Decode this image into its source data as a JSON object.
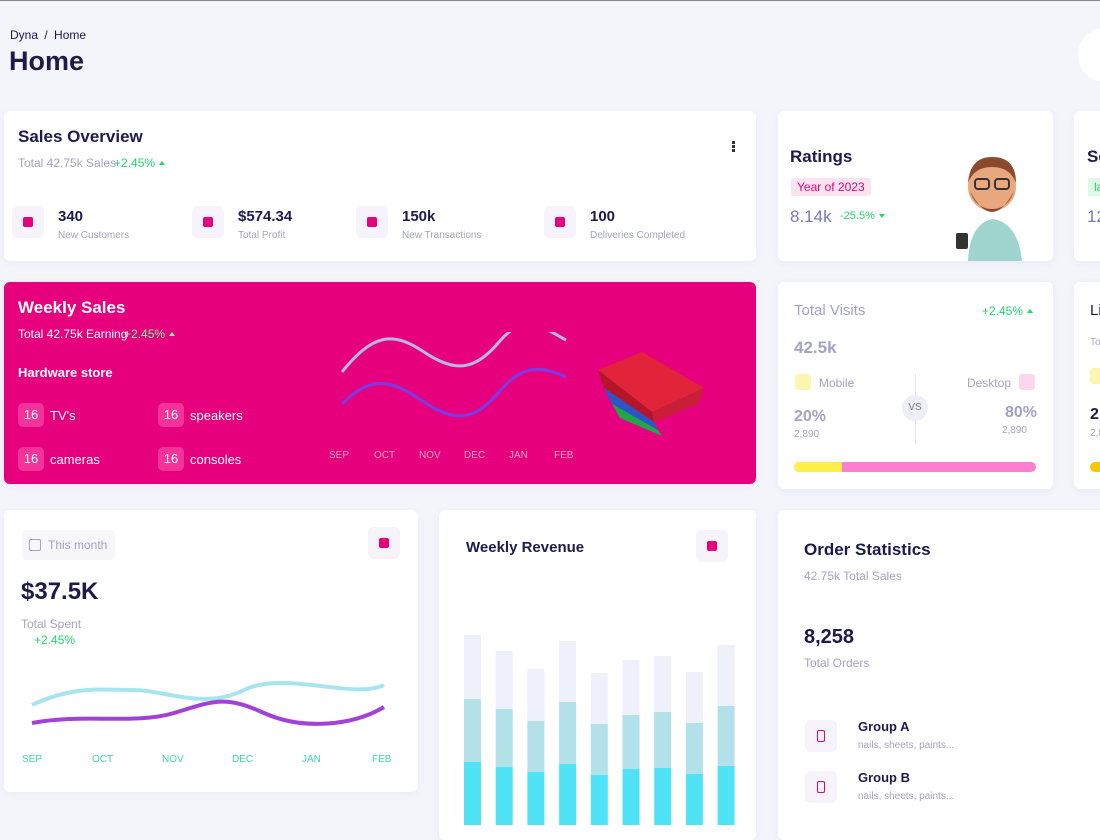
{
  "breadcrumb": {
    "root": "Dyna",
    "separator": "/",
    "current": "Home"
  },
  "page_title": "Home",
  "sales_overview": {
    "title": "Sales Overview",
    "subtitle": "Total 42.75k Sales",
    "change": "+2.45%",
    "stats": [
      {
        "value": "340",
        "label": "New Customers"
      },
      {
        "value": "$574.34",
        "label": "Total Profit"
      },
      {
        "value": "150k",
        "label": "New Transactions"
      },
      {
        "value": "100",
        "label": "Deliveries Completed"
      }
    ]
  },
  "ratings": {
    "title": "Ratings",
    "badge": "Year of 2023",
    "value": "8.14k",
    "change": "-25.5%"
  },
  "cropped_card_1": {
    "title": "Se",
    "badge": "la",
    "value": "12"
  },
  "weekly_sales": {
    "title": "Weekly Sales",
    "subtitle": "Total 42.75k Earning",
    "change": "+2.45%",
    "store": "Hardware store",
    "items": [
      {
        "count": "16",
        "label": "TV's"
      },
      {
        "count": "16",
        "label": "speakers"
      },
      {
        "count": "16",
        "label": "cameras"
      },
      {
        "count": "16",
        "label": "consoles"
      }
    ],
    "months": [
      "SEP",
      "OCT",
      "NOV",
      "DEC",
      "JAN",
      "FEB"
    ]
  },
  "total_visits": {
    "title": "Total Visits",
    "change": "+2.45%",
    "value": "42.5k",
    "vs": "VS",
    "mobile": {
      "label": "Mobile",
      "percent": "20%",
      "count": "2,890"
    },
    "desktop": {
      "label": "Desktop",
      "percent": "80%",
      "count": "2,890"
    }
  },
  "cropped_card_2": {
    "title": "Li",
    "subtitle": "To",
    "value": "2",
    "count": "2,8"
  },
  "total_spent": {
    "period": "This month",
    "value": "$37.5K",
    "label": "Total Spent",
    "change": "+2.45%",
    "months": [
      "SEP",
      "OCT",
      "NOV",
      "DEC",
      "JAN",
      "FEB"
    ]
  },
  "weekly_revenue": {
    "title": "Weekly Revenue"
  },
  "chart_data": {
    "type": "bar",
    "stacked": true,
    "series": [
      {
        "color": "#4fe3f5",
        "values": [
          63,
          58,
          53,
          61,
          50,
          56,
          57,
          51,
          59
        ]
      },
      {
        "color": "#b2e1e9",
        "values": [
          63,
          58,
          51,
          62,
          51,
          54,
          56,
          51,
          60
        ]
      },
      {
        "color": "#eef0fa",
        "values": [
          64,
          58,
          52,
          61,
          51,
          55,
          56,
          51,
          61
        ]
      }
    ]
  },
  "order_statistics": {
    "title": "Order Statistics",
    "subtitle": "42.75k Total Sales",
    "value": "8,258",
    "label": "Total Orders",
    "groups": [
      {
        "name": "Group A",
        "desc": "nails, sheets, paints..."
      },
      {
        "name": "Group B",
        "desc": "nails, sheets, paints..."
      }
    ]
  }
}
